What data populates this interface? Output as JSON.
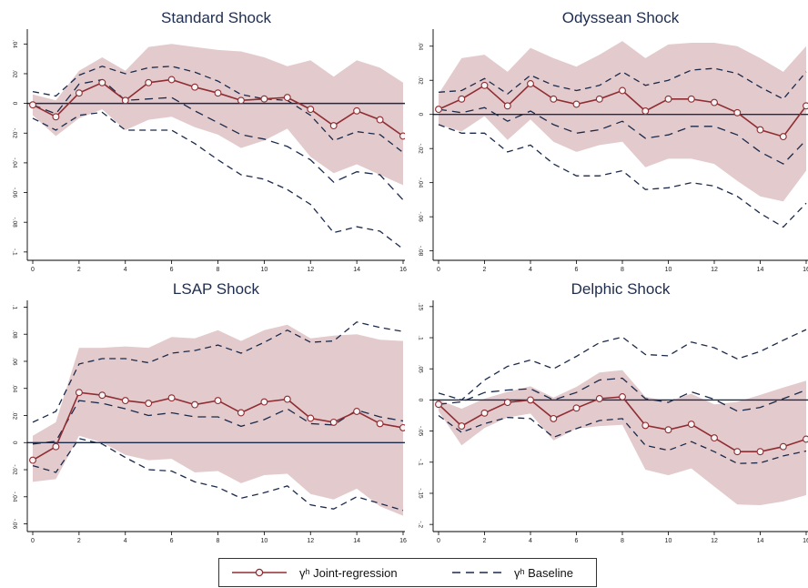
{
  "colors": {
    "line": "#8f2d32",
    "baseline": "#1b2a4a",
    "band": "#d9b8bc",
    "zero": "#1b2a4a",
    "marker_fill": "#f5f5f5",
    "title": "#1f2d4e"
  },
  "legend": {
    "joint_label": "γʰ Joint-regression",
    "baseline_label": "γʰ Baseline"
  },
  "chart_data": [
    {
      "type": "line",
      "title": "Standard Shock",
      "x": [
        0,
        1,
        2,
        3,
        4,
        5,
        6,
        7,
        8,
        9,
        10,
        11,
        12,
        13,
        14,
        15,
        16
      ],
      "xticks": [
        "0",
        "2",
        "4",
        "6",
        "8",
        "10",
        "12",
        "14",
        "16"
      ],
      "xlim": [
        0,
        16
      ],
      "yticks": [
        ".04",
        ".02",
        "0",
        "-.02",
        "-.04",
        "-.06",
        "-.08",
        "-.1"
      ],
      "ylim": [
        -0.105,
        0.05
      ],
      "zero_line": 0,
      "series": [
        {
          "name": "γʰ Joint-regression",
          "role": "joint",
          "values": [
            -0.001,
            -0.009,
            0.007,
            0.014,
            0.002,
            0.014,
            0.016,
            0.011,
            0.007,
            0.002,
            0.003,
            0.004,
            -0.004,
            -0.015,
            -0.005,
            -0.011,
            -0.022
          ]
        },
        {
          "name": "γʰ Baseline",
          "role": "baseline_point",
          "values": [
            -0.001,
            -0.007,
            0.013,
            0.016,
            0.002,
            0.003,
            0.004,
            -0.005,
            -0.013,
            -0.021,
            -0.024,
            -0.029,
            -0.038,
            -0.053,
            -0.046,
            -0.048,
            -0.065
          ]
        },
        {
          "role": "baseline_upper",
          "values": [
            0.008,
            0.005,
            0.019,
            0.025,
            0.02,
            0.024,
            0.025,
            0.021,
            0.015,
            0.006,
            0.003,
            0.002,
            -0.008,
            -0.025,
            -0.019,
            -0.021,
            -0.033
          ]
        },
        {
          "role": "baseline_lower",
          "values": [
            -0.01,
            -0.018,
            -0.008,
            -0.006,
            -0.018,
            -0.018,
            -0.018,
            -0.027,
            -0.038,
            -0.048,
            -0.051,
            -0.058,
            -0.068,
            -0.087,
            -0.083,
            -0.086,
            -0.098
          ]
        },
        {
          "role": "band_upper",
          "values": [
            0.006,
            0.002,
            0.022,
            0.031,
            0.022,
            0.038,
            0.04,
            0.038,
            0.036,
            0.035,
            0.031,
            0.025,
            0.029,
            0.018,
            0.029,
            0.024,
            0.014
          ]
        },
        {
          "role": "band_lower",
          "values": [
            -0.008,
            -0.022,
            -0.01,
            -0.004,
            -0.018,
            -0.011,
            -0.009,
            -0.016,
            -0.021,
            -0.03,
            -0.025,
            -0.017,
            -0.036,
            -0.047,
            -0.041,
            -0.048,
            -0.055
          ]
        }
      ]
    },
    {
      "type": "line",
      "title": "Odyssean Shock",
      "x": [
        0,
        1,
        2,
        3,
        4,
        5,
        6,
        7,
        8,
        9,
        10,
        11,
        12,
        13,
        14,
        15,
        16
      ],
      "xticks": [
        "0",
        "2",
        "4",
        "6",
        "8",
        "10",
        "12",
        "14",
        "16"
      ],
      "xlim": [
        0,
        16
      ],
      "yticks": [
        ".04",
        ".02",
        "0",
        "-.02",
        "-.04",
        "-.06",
        "-.08"
      ],
      "ylim": [
        -0.085,
        0.05
      ],
      "zero_line": 0,
      "series": [
        {
          "name": "γʰ Joint-regression",
          "role": "joint",
          "values": [
            0.003,
            0.009,
            0.017,
            0.005,
            0.018,
            0.009,
            0.006,
            0.009,
            0.014,
            0.002,
            0.009,
            0.009,
            0.007,
            0.001,
            -0.009,
            -0.013,
            0.005
          ]
        },
        {
          "name": "γʰ Baseline",
          "role": "baseline_point",
          "values": [
            0.003,
            0.001,
            0.004,
            -0.004,
            0.002,
            -0.006,
            -0.011,
            -0.009,
            -0.004,
            -0.014,
            -0.012,
            -0.007,
            -0.007,
            -0.012,
            -0.022,
            -0.029,
            -0.015
          ]
        },
        {
          "role": "baseline_upper",
          "values": [
            0.013,
            0.014,
            0.021,
            0.012,
            0.023,
            0.017,
            0.014,
            0.017,
            0.025,
            0.017,
            0.02,
            0.026,
            0.027,
            0.024,
            0.016,
            0.009,
            0.025
          ]
        },
        {
          "role": "baseline_lower",
          "values": [
            -0.006,
            -0.011,
            -0.011,
            -0.022,
            -0.018,
            -0.029,
            -0.036,
            -0.036,
            -0.033,
            -0.044,
            -0.043,
            -0.04,
            -0.042,
            -0.048,
            -0.058,
            -0.066,
            -0.052
          ]
        },
        {
          "role": "band_upper",
          "values": [
            0.012,
            0.033,
            0.035,
            0.025,
            0.039,
            0.033,
            0.028,
            0.035,
            0.043,
            0.033,
            0.041,
            0.042,
            0.042,
            0.04,
            0.033,
            0.025,
            0.04
          ]
        },
        {
          "role": "band_lower",
          "values": [
            -0.006,
            -0.01,
            -0.001,
            -0.015,
            -0.003,
            -0.016,
            -0.022,
            -0.018,
            -0.016,
            -0.031,
            -0.026,
            -0.026,
            -0.029,
            -0.039,
            -0.048,
            -0.051,
            -0.033
          ]
        }
      ]
    },
    {
      "type": "line",
      "title": "LSAP Shock",
      "x": [
        0,
        1,
        2,
        3,
        4,
        5,
        6,
        7,
        8,
        9,
        10,
        11,
        12,
        13,
        14,
        15,
        16
      ],
      "xticks": [
        "0",
        "2",
        "4",
        "6",
        "8",
        "10",
        "12",
        "14",
        "16"
      ],
      "xlim": [
        0,
        16
      ],
      "yticks": [
        ".1",
        ".08",
        ".06",
        ".04",
        ".02",
        "0",
        "-.02",
        "-.04",
        "-.06"
      ],
      "ylim": [
        -0.065,
        0.105
      ],
      "zero_line": 0,
      "series": [
        {
          "name": "γʰ Joint-regression",
          "role": "joint",
          "values": [
            -0.013,
            -0.003,
            0.037,
            0.035,
            0.031,
            0.029,
            0.033,
            0.028,
            0.031,
            0.022,
            0.03,
            0.032,
            0.018,
            0.015,
            0.023,
            0.014,
            0.011
          ]
        },
        {
          "name": "γʰ Baseline",
          "role": "baseline_point",
          "values": [
            -0.001,
            0.001,
            0.031,
            0.029,
            0.025,
            0.02,
            0.022,
            0.019,
            0.019,
            0.012,
            0.017,
            0.025,
            0.014,
            0.013,
            0.024,
            0.019,
            0.016
          ]
        },
        {
          "role": "baseline_upper",
          "values": [
            0.015,
            0.023,
            0.058,
            0.062,
            0.062,
            0.059,
            0.066,
            0.068,
            0.072,
            0.066,
            0.074,
            0.083,
            0.074,
            0.075,
            0.089,
            0.085,
            0.082
          ]
        },
        {
          "role": "baseline_lower",
          "values": [
            -0.017,
            -0.022,
            0.003,
            -0.001,
            -0.011,
            -0.02,
            -0.021,
            -0.029,
            -0.033,
            -0.041,
            -0.037,
            -0.032,
            -0.046,
            -0.049,
            -0.04,
            -0.045,
            -0.05
          ]
        },
        {
          "role": "band_upper",
          "values": [
            0.005,
            0.015,
            0.07,
            0.07,
            0.071,
            0.07,
            0.078,
            0.077,
            0.083,
            0.075,
            0.083,
            0.087,
            0.077,
            0.079,
            0.08,
            0.076,
            0.075
          ]
        },
        {
          "role": "band_lower",
          "values": [
            -0.029,
            -0.027,
            0.005,
            0.0,
            -0.009,
            -0.013,
            -0.012,
            -0.022,
            -0.021,
            -0.03,
            -0.024,
            -0.023,
            -0.038,
            -0.042,
            -0.034,
            -0.047,
            -0.054
          ]
        }
      ]
    },
    {
      "type": "line",
      "title": "Delphic Shock",
      "x": [
        0,
        1,
        2,
        3,
        4,
        5,
        6,
        7,
        8,
        9,
        10,
        11,
        12,
        13,
        14,
        15,
        16
      ],
      "xticks": [
        "0",
        "2",
        "4",
        "6",
        "8",
        "10",
        "12",
        "14",
        "16"
      ],
      "xlim": [
        0,
        16
      ],
      "yticks": [
        ".15",
        ".1",
        ".05",
        "0",
        "-.05",
        "-.1",
        "-.15",
        "-.2"
      ],
      "ylim": [
        -0.21,
        0.16
      ],
      "zero_line": 0,
      "series": [
        {
          "name": "γʰ Joint-regression",
          "role": "joint",
          "values": [
            -0.007,
            -0.042,
            -0.021,
            -0.004,
            0.0,
            -0.03,
            -0.013,
            0.002,
            0.005,
            -0.041,
            -0.048,
            -0.039,
            -0.061,
            -0.083,
            -0.083,
            -0.075,
            -0.063
          ]
        },
        {
          "name": "γʰ Baseline",
          "role": "baseline_point",
          "values": [
            -0.007,
            -0.003,
            0.012,
            0.016,
            0.018,
            0.0,
            0.012,
            0.032,
            0.035,
            0.002,
            -0.004,
            0.013,
            0.001,
            -0.018,
            -0.012,
            0.002,
            0.016
          ]
        },
        {
          "role": "baseline_upper",
          "values": [
            0.011,
            0.0,
            0.032,
            0.054,
            0.064,
            0.05,
            0.07,
            0.092,
            0.101,
            0.073,
            0.071,
            0.093,
            0.084,
            0.066,
            0.078,
            0.096,
            0.113
          ]
        },
        {
          "role": "baseline_lower",
          "values": [
            -0.025,
            -0.052,
            -0.038,
            -0.028,
            -0.03,
            -0.06,
            -0.046,
            -0.033,
            -0.03,
            -0.073,
            -0.081,
            -0.067,
            -0.083,
            -0.102,
            -0.101,
            -0.09,
            -0.082
          ]
        },
        {
          "role": "band_upper",
          "values": [
            0.0,
            -0.014,
            0.002,
            0.013,
            0.022,
            0.004,
            0.021,
            0.044,
            0.048,
            0.005,
            -0.002,
            0.01,
            -0.007,
            -0.003,
            0.008,
            0.02,
            0.031
          ]
        },
        {
          "role": "band_lower",
          "values": [
            -0.018,
            -0.073,
            -0.045,
            -0.028,
            -0.022,
            -0.065,
            -0.046,
            -0.042,
            -0.04,
            -0.112,
            -0.121,
            -0.11,
            -0.139,
            -0.168,
            -0.169,
            -0.163,
            -0.153
          ]
        }
      ]
    }
  ]
}
